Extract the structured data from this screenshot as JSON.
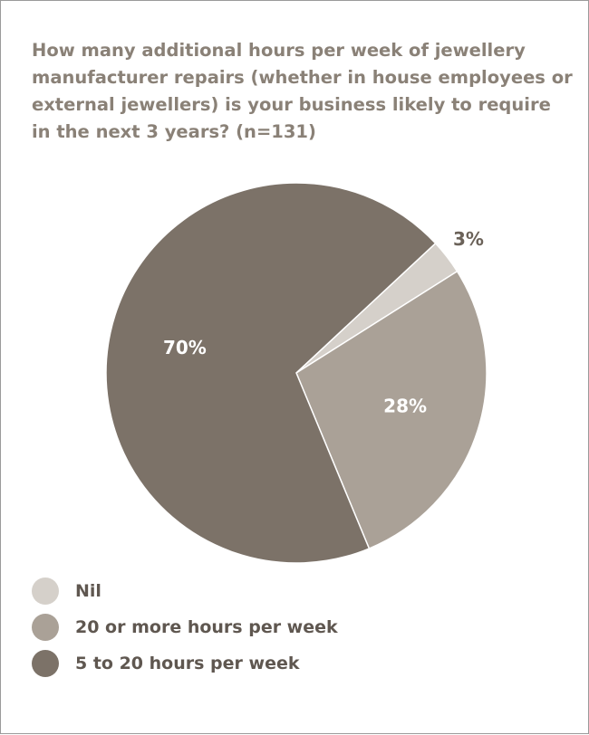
{
  "chart_data": {
    "type": "pie",
    "title": "How many additional hours per week of jewellery manufacturer repairs (whether in house employees or external jewellers) is your business likely to require in the next 3 years? (n=131)",
    "slices": [
      {
        "label": "Nil",
        "value": 3,
        "display": "3%",
        "color": "#d5d0ca"
      },
      {
        "label": "20 or more hours per week",
        "value": 28,
        "display": "28%",
        "color": "#aaa197"
      },
      {
        "label": "5 to 20 hours per week",
        "value": 70,
        "display": "70%",
        "color": "#7c7268"
      }
    ],
    "legend_position": "bottom-left",
    "start_angle_deg": 47,
    "direction": "clockwise"
  }
}
